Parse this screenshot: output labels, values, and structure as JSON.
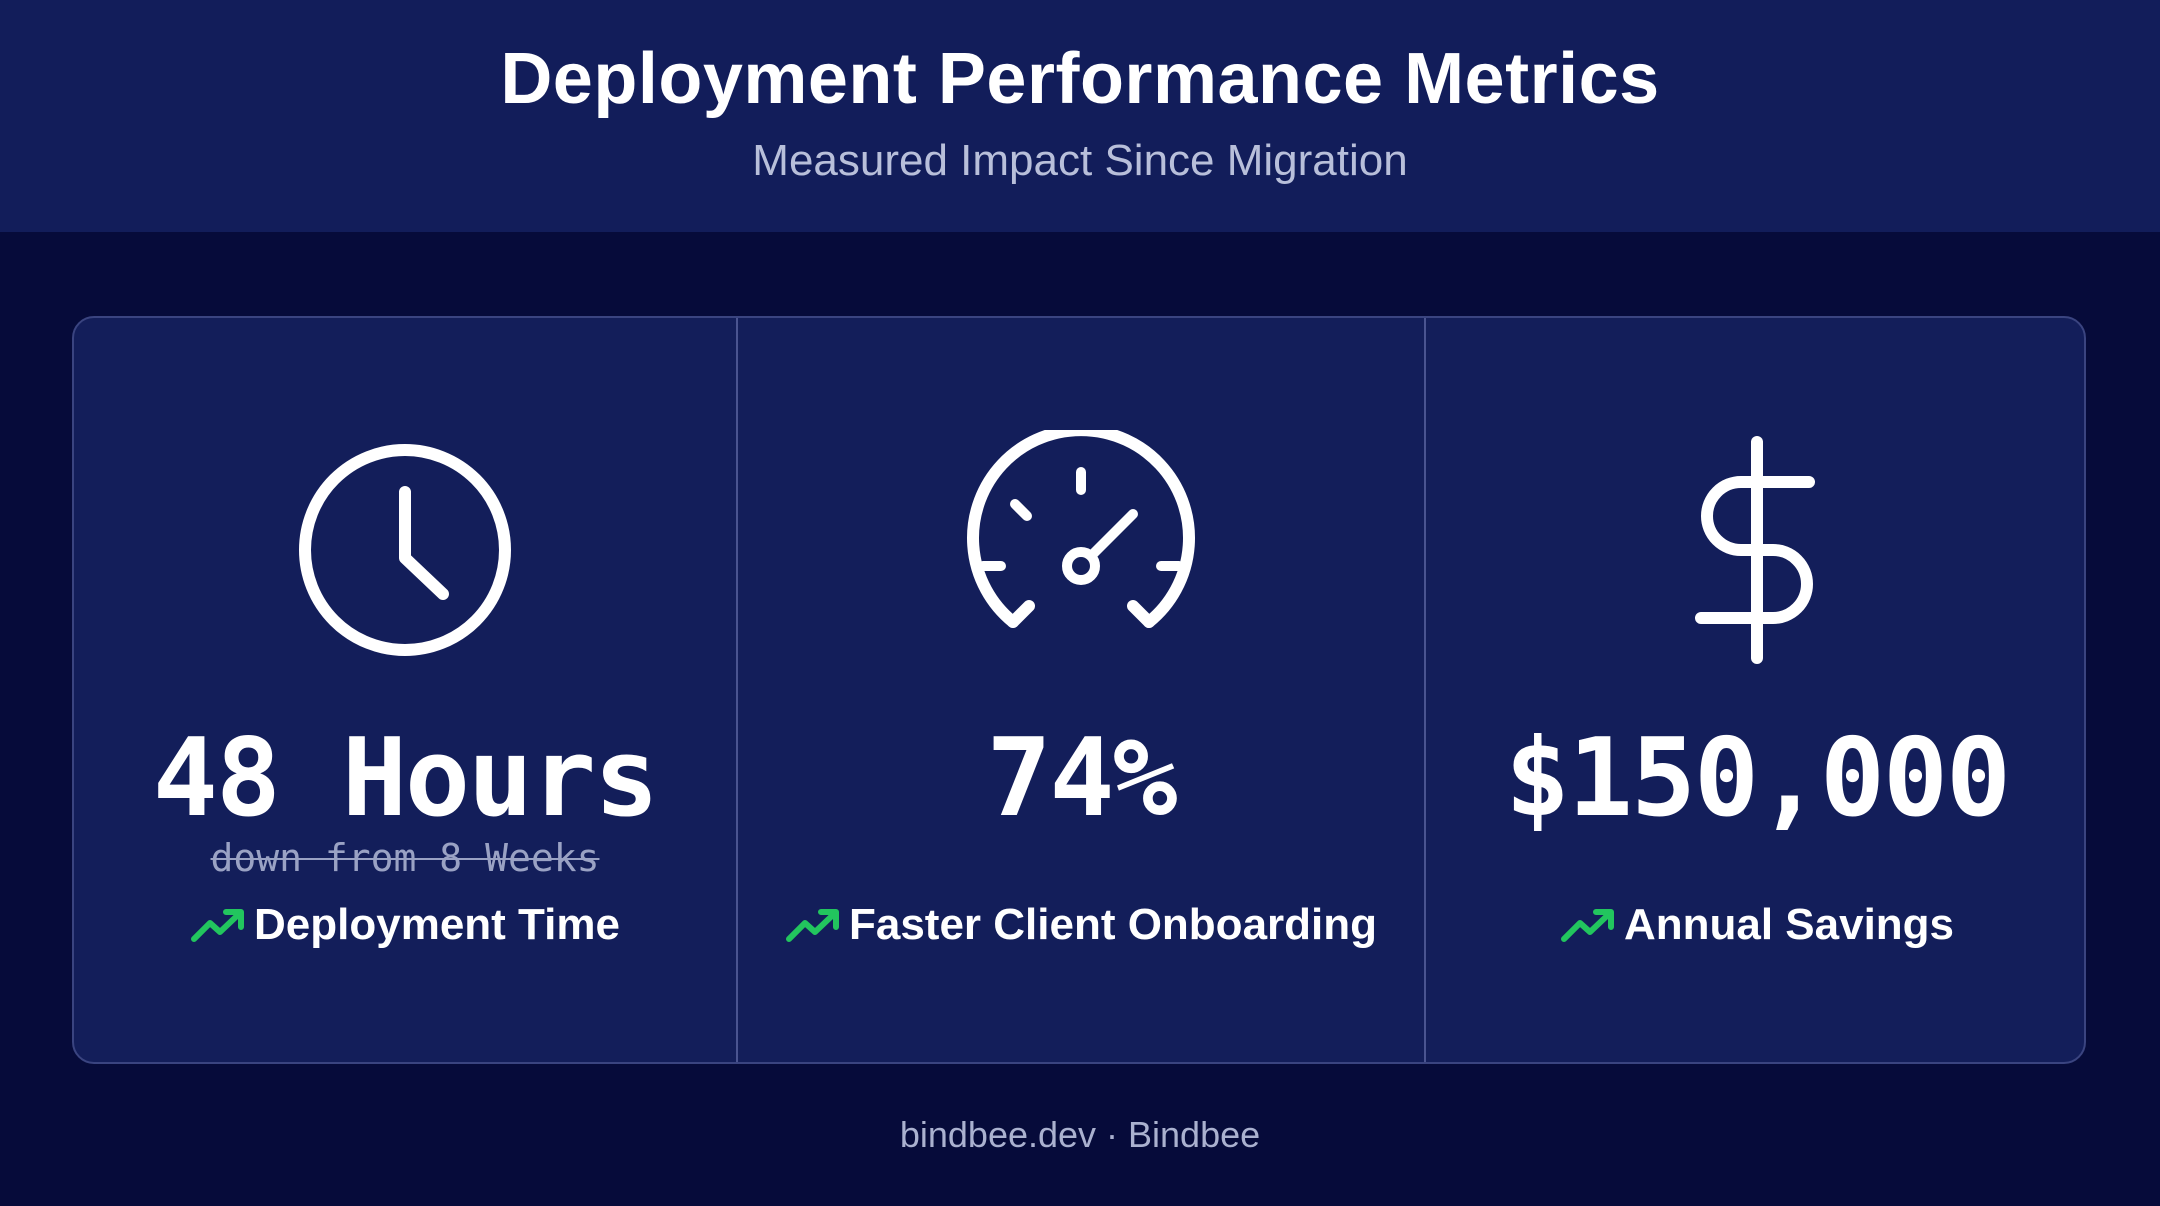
{
  "header": {
    "title": "Deployment Performance Metrics",
    "subtitle": "Measured Impact Since Migration"
  },
  "colors": {
    "header_bg": "#121d5a",
    "page_bg": "#060b3a",
    "card_bg": "#131e5a",
    "trend_accent": "#22c55e",
    "text_primary": "#ffffff",
    "text_muted": "#b8bfda"
  },
  "metrics": [
    {
      "icon": "clock-icon",
      "value": "48 Hours",
      "previous": "down from 8 Weeks",
      "trend_icon": "trending-up-icon",
      "label": "Deployment Time"
    },
    {
      "icon": "speedometer-icon",
      "value": "74%",
      "trend_icon": "trending-up-icon",
      "label": "Faster Client Onboarding"
    },
    {
      "icon": "dollar-icon",
      "value": "$150,000",
      "trend_icon": "trending-up-icon",
      "label": "Annual Savings"
    }
  ],
  "footer": {
    "text": "bindbee.dev · Bindbee"
  }
}
